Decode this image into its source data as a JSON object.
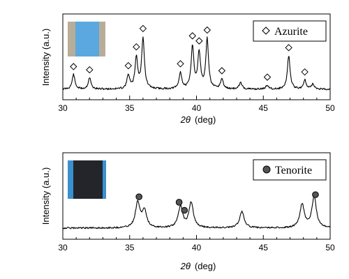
{
  "chart_data": [
    {
      "type": "line",
      "xlabel_symbol": "2θ",
      "xlabel_unit": "(deg)",
      "ylabel": "Intensity (a.u.)",
      "xlim": [
        30,
        50
      ],
      "x_ticks": [
        "30",
        "35",
        "40",
        "45",
        "50"
      ],
      "legend": {
        "marker": "diamond",
        "label": "Azurite",
        "placement": "top-right"
      },
      "inset_photo": {
        "placement": "top-left",
        "main_color": "#5aa8df",
        "edge_color": "#b8ad98"
      },
      "peaks": [
        {
          "x": 30.8,
          "h": 0.18
        },
        {
          "x": 32.0,
          "h": 0.14
        },
        {
          "x": 34.9,
          "h": 0.17
        },
        {
          "x": 35.5,
          "h": 0.38
        },
        {
          "x": 36.0,
          "h": 0.62
        },
        {
          "x": 38.8,
          "h": 0.2
        },
        {
          "x": 39.7,
          "h": 0.52
        },
        {
          "x": 40.2,
          "h": 0.44
        },
        {
          "x": 40.8,
          "h": 0.6
        },
        {
          "x": 41.9,
          "h": 0.12
        },
        {
          "x": 43.3,
          "h": 0.08
        },
        {
          "x": 45.3,
          "h": 0.05
        },
        {
          "x": 46.9,
          "h": 0.41
        },
        {
          "x": 48.1,
          "h": 0.11
        },
        {
          "x": 48.7,
          "h": 0.06
        }
      ],
      "markers_x": [
        30.8,
        32.0,
        34.9,
        35.5,
        36.0,
        38.8,
        39.7,
        40.2,
        40.8,
        41.9,
        45.3,
        46.9,
        48.1
      ]
    },
    {
      "type": "line",
      "xlabel_symbol": "2θ",
      "xlabel_unit": "(deg)",
      "ylabel": "Intensity (a.u.)",
      "xlim": [
        30,
        50
      ],
      "x_ticks": [
        "30",
        "35",
        "40",
        "45",
        "50"
      ],
      "legend": {
        "marker": "filled-circle",
        "label": "Tenorite",
        "placement": "top-right"
      },
      "inset_photo": {
        "placement": "top-left",
        "main_color": "#23252a",
        "edge_color": "#3a8fcf"
      },
      "peaks": [
        {
          "x": 35.6,
          "h": 0.3
        },
        {
          "x": 36.1,
          "h": 0.2
        },
        {
          "x": 38.8,
          "h": 0.25
        },
        {
          "x": 39.6,
          "h": 0.3
        },
        {
          "x": 43.4,
          "h": 0.2
        },
        {
          "x": 47.9,
          "h": 0.28
        },
        {
          "x": 48.8,
          "h": 0.37
        }
      ],
      "markers_x": [
        35.7,
        38.7,
        39.1,
        48.9
      ]
    }
  ]
}
